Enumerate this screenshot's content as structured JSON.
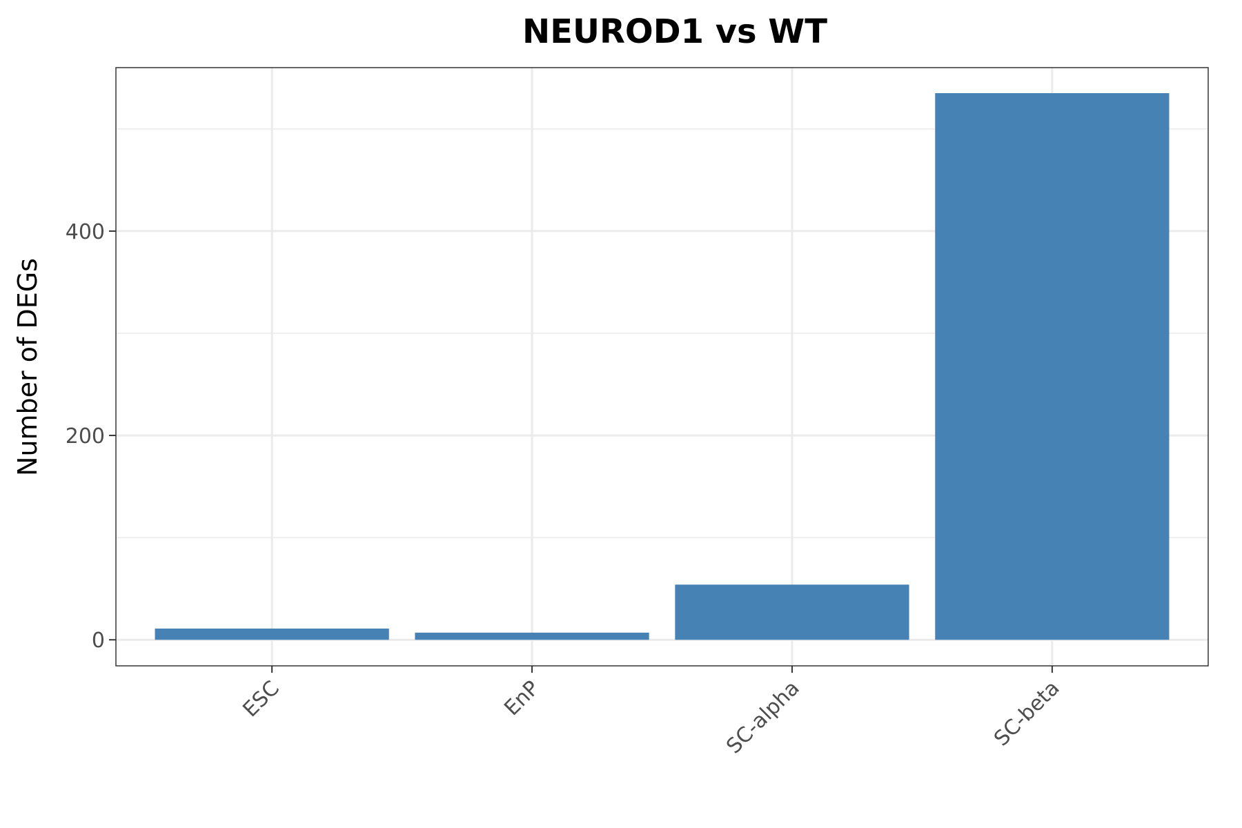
{
  "chart_data": {
    "type": "bar",
    "title": "NEUROD1 vs WT",
    "xlabel": "",
    "ylabel": "Number of DEGs",
    "categories": [
      "ESC",
      "EnP",
      "SC-alpha",
      "SC-beta"
    ],
    "values": [
      11,
      7,
      54,
      535
    ],
    "ylim": [
      -25.5,
      560
    ],
    "yticks": [
      0,
      200,
      400
    ],
    "y_minor_ticks": [
      100,
      300,
      500
    ],
    "bar_color": "#4682b4",
    "grid": true,
    "legend": "none"
  }
}
